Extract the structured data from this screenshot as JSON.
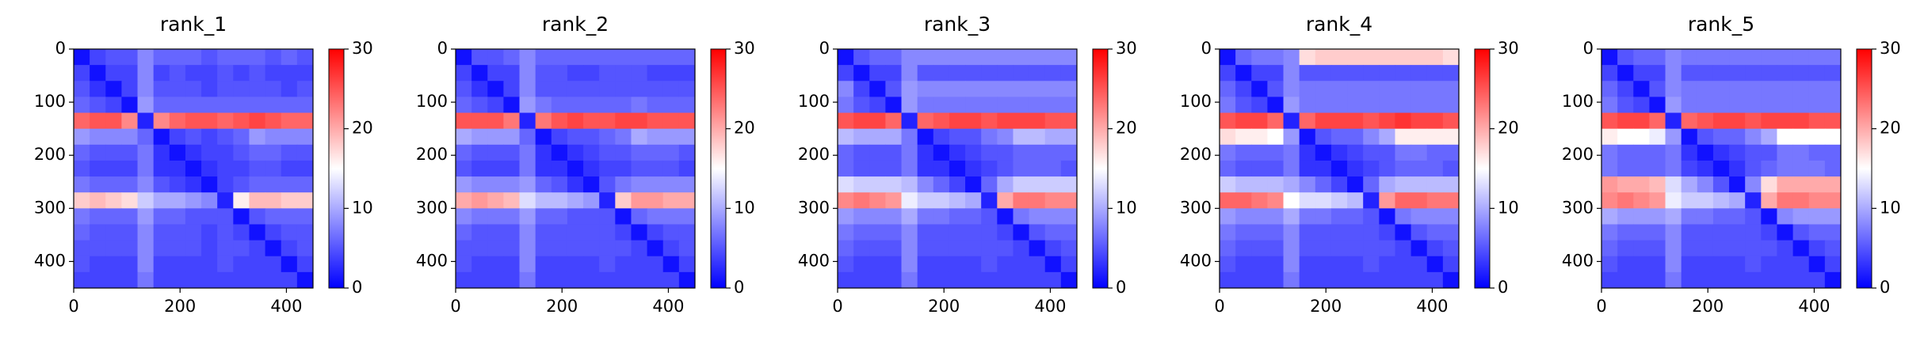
{
  "chart_data": [
    {
      "type": "heatmap",
      "title": "rank_1",
      "cmap": "bwr",
      "clim": [
        0,
        30
      ],
      "cticks": [
        0,
        10,
        20,
        30
      ],
      "xlim": [
        0,
        450
      ],
      "ylim": [
        450,
        0
      ],
      "xticks": [
        0,
        200,
        400
      ],
      "yticks": [
        0,
        100,
        200,
        300,
        400
      ],
      "z": [
        [
          1,
          4,
          5,
          5,
          8,
          6,
          6,
          6,
          5,
          6,
          6,
          6,
          5,
          6,
          5
        ],
        [
          4,
          1,
          4,
          4,
          8,
          4,
          5,
          4,
          4,
          5,
          4,
          5,
          4,
          4,
          4
        ],
        [
          5,
          3,
          1,
          4,
          8,
          5,
          5,
          5,
          4,
          5,
          5,
          5,
          5,
          4,
          5
        ],
        [
          6,
          5,
          4,
          1,
          9,
          6,
          6,
          6,
          6,
          6,
          6,
          6,
          6,
          6,
          6
        ],
        [
          24,
          25,
          25,
          22,
          2,
          22,
          24,
          25,
          25,
          24,
          25,
          26,
          25,
          24,
          24
        ],
        [
          9,
          8,
          8,
          8,
          6,
          1,
          4,
          5,
          4,
          5,
          6,
          9,
          8,
          8,
          8
        ],
        [
          6,
          5,
          5,
          5,
          7,
          3,
          1,
          3,
          4,
          4,
          5,
          6,
          6,
          5,
          5
        ],
        [
          5,
          4,
          4,
          4,
          7,
          3,
          3,
          1,
          3,
          4,
          4,
          5,
          5,
          4,
          4
        ],
        [
          7,
          6,
          6,
          6,
          8,
          5,
          4,
          3,
          1,
          4,
          5,
          6,
          6,
          6,
          6
        ],
        [
          18,
          19,
          18,
          17,
          12,
          10,
          10,
          9,
          8,
          2,
          16,
          19,
          19,
          18,
          18
        ],
        [
          7,
          6,
          6,
          6,
          9,
          6,
          6,
          5,
          5,
          5,
          1,
          5,
          6,
          6,
          6
        ],
        [
          6,
          5,
          5,
          5,
          8,
          5,
          5,
          5,
          4,
          5,
          4,
          1,
          4,
          5,
          5
        ],
        [
          5,
          5,
          5,
          5,
          8,
          5,
          5,
          5,
          4,
          5,
          5,
          4,
          1,
          4,
          5
        ],
        [
          5,
          4,
          4,
          4,
          8,
          4,
          4,
          4,
          4,
          5,
          4,
          4,
          4,
          1,
          4
        ],
        [
          4,
          4,
          4,
          4,
          7,
          4,
          4,
          4,
          4,
          4,
          4,
          4,
          4,
          4,
          1
        ]
      ]
    },
    {
      "type": "heatmap",
      "title": "rank_2",
      "cmap": "bwr",
      "clim": [
        0,
        30
      ],
      "cticks": [
        0,
        10,
        20,
        30
      ],
      "xlim": [
        0,
        450
      ],
      "ylim": [
        450,
        0
      ],
      "xticks": [
        0,
        200,
        400
      ],
      "yticks": [
        0,
        100,
        200,
        300,
        400
      ],
      "z": [
        [
          1,
          5,
          5,
          6,
          8,
          6,
          6,
          6,
          6,
          6,
          6,
          6,
          6,
          6,
          6
        ],
        [
          4,
          1,
          4,
          4,
          8,
          5,
          5,
          4,
          4,
          5,
          5,
          5,
          4,
          4,
          4
        ],
        [
          5,
          3,
          1,
          4,
          8,
          5,
          5,
          5,
          5,
          5,
          5,
          5,
          5,
          5,
          5
        ],
        [
          6,
          5,
          4,
          1,
          9,
          7,
          6,
          6,
          6,
          6,
          6,
          7,
          6,
          6,
          6
        ],
        [
          25,
          25,
          25,
          23,
          2,
          23,
          25,
          26,
          25,
          25,
          26,
          26,
          25,
          25,
          25
        ],
        [
          10,
          9,
          9,
          9,
          6,
          1,
          4,
          5,
          5,
          6,
          7,
          10,
          9,
          9,
          9
        ],
        [
          6,
          5,
          5,
          5,
          7,
          3,
          1,
          3,
          4,
          5,
          5,
          6,
          6,
          6,
          5
        ],
        [
          5,
          4,
          4,
          4,
          7,
          3,
          3,
          1,
          3,
          4,
          4,
          5,
          5,
          5,
          4
        ],
        [
          9,
          8,
          8,
          8,
          9,
          6,
          5,
          3,
          1,
          5,
          7,
          8,
          8,
          8,
          8
        ],
        [
          20,
          21,
          20,
          19,
          13,
          11,
          11,
          10,
          9,
          2,
          18,
          21,
          21,
          20,
          20
        ],
        [
          8,
          7,
          7,
          7,
          9,
          6,
          6,
          5,
          5,
          5,
          1,
          6,
          7,
          7,
          7
        ],
        [
          6,
          5,
          5,
          5,
          8,
          5,
          5,
          5,
          5,
          5,
          4,
          1,
          4,
          5,
          5
        ],
        [
          5,
          5,
          5,
          5,
          8,
          5,
          5,
          5,
          5,
          5,
          5,
          4,
          1,
          4,
          5
        ],
        [
          5,
          4,
          4,
          4,
          8,
          4,
          4,
          4,
          4,
          5,
          4,
          4,
          4,
          1,
          4
        ],
        [
          4,
          4,
          4,
          4,
          7,
          4,
          4,
          4,
          4,
          4,
          4,
          4,
          4,
          4,
          1
        ]
      ]
    },
    {
      "type": "heatmap",
      "title": "rank_3",
      "cmap": "bwr",
      "clim": [
        0,
        30
      ],
      "cticks": [
        0,
        10,
        20,
        30
      ],
      "xlim": [
        0,
        450
      ],
      "ylim": [
        450,
        0
      ],
      "xticks": [
        0,
        200,
        400
      ],
      "yticks": [
        0,
        100,
        200,
        300,
        400
      ],
      "z": [
        [
          1,
          5,
          6,
          6,
          8,
          8,
          8,
          8,
          8,
          8,
          8,
          8,
          8,
          8,
          8
        ],
        [
          4,
          1,
          4,
          4,
          8,
          5,
          5,
          5,
          5,
          5,
          5,
          5,
          5,
          5,
          5
        ],
        [
          8,
          4,
          1,
          5,
          9,
          8,
          8,
          8,
          8,
          8,
          8,
          8,
          8,
          8,
          8
        ],
        [
          7,
          5,
          4,
          1,
          9,
          7,
          7,
          7,
          7,
          7,
          7,
          7,
          7,
          7,
          7
        ],
        [
          25,
          26,
          26,
          24,
          2,
          24,
          25,
          26,
          26,
          25,
          26,
          26,
          26,
          25,
          25
        ],
        [
          11,
          10,
          10,
          10,
          7,
          1,
          4,
          5,
          5,
          7,
          8,
          11,
          11,
          10,
          10
        ],
        [
          6,
          5,
          5,
          5,
          7,
          3,
          1,
          3,
          4,
          5,
          5,
          6,
          6,
          6,
          6
        ],
        [
          6,
          5,
          5,
          5,
          7,
          3,
          3,
          1,
          3,
          4,
          5,
          6,
          6,
          6,
          5
        ],
        [
          13,
          12,
          12,
          12,
          11,
          8,
          6,
          4,
          1,
          6,
          10,
          12,
          12,
          12,
          12
        ],
        [
          22,
          23,
          22,
          21,
          14,
          12,
          12,
          11,
          10,
          2,
          20,
          23,
          23,
          22,
          22
        ],
        [
          9,
          8,
          8,
          8,
          10,
          7,
          7,
          6,
          6,
          5,
          1,
          7,
          8,
          8,
          8
        ],
        [
          7,
          6,
          6,
          6,
          8,
          5,
          5,
          5,
          5,
          5,
          4,
          1,
          5,
          6,
          6
        ],
        [
          6,
          5,
          5,
          5,
          8,
          5,
          5,
          5,
          5,
          5,
          5,
          4,
          1,
          4,
          5
        ],
        [
          5,
          4,
          4,
          4,
          8,
          4,
          4,
          4,
          4,
          5,
          4,
          4,
          4,
          1,
          4
        ],
        [
          4,
          4,
          4,
          4,
          7,
          4,
          4,
          4,
          4,
          4,
          4,
          4,
          4,
          4,
          1
        ]
      ]
    },
    {
      "type": "heatmap",
      "title": "rank_4",
      "cmap": "bwr",
      "clim": [
        0,
        30
      ],
      "cticks": [
        0,
        10,
        20,
        30
      ],
      "xlim": [
        0,
        450
      ],
      "ylim": [
        450,
        0
      ],
      "xticks": [
        0,
        200,
        400
      ],
      "yticks": [
        0,
        100,
        200,
        300,
        400
      ],
      "z": [
        [
          1,
          6,
          7,
          7,
          8,
          17,
          18,
          18,
          18,
          18,
          18,
          18,
          18,
          18,
          17
        ],
        [
          4,
          1,
          4,
          4,
          8,
          5,
          5,
          5,
          5,
          5,
          5,
          5,
          5,
          5,
          5
        ],
        [
          6,
          4,
          1,
          5,
          8,
          7,
          7,
          7,
          7,
          7,
          7,
          7,
          7,
          7,
          7
        ],
        [
          7,
          5,
          4,
          1,
          9,
          7,
          7,
          7,
          7,
          7,
          7,
          7,
          7,
          7,
          7
        ],
        [
          25,
          26,
          26,
          24,
          2,
          24,
          26,
          26,
          26,
          25,
          26,
          27,
          26,
          26,
          25
        ],
        [
          17,
          16,
          16,
          15,
          9,
          1,
          5,
          6,
          6,
          8,
          10,
          16,
          16,
          16,
          16
        ],
        [
          7,
          6,
          6,
          6,
          7,
          3,
          1,
          3,
          4,
          5,
          5,
          7,
          7,
          6,
          6
        ],
        [
          6,
          5,
          5,
          5,
          7,
          3,
          3,
          1,
          3,
          4,
          5,
          6,
          6,
          6,
          5
        ],
        [
          12,
          11,
          11,
          11,
          10,
          8,
          6,
          4,
          1,
          6,
          10,
          11,
          11,
          11,
          11
        ],
        [
          24,
          24,
          23,
          22,
          15,
          13,
          13,
          12,
          11,
          2,
          21,
          24,
          24,
          23,
          23
        ],
        [
          9,
          8,
          8,
          8,
          10,
          7,
          7,
          6,
          6,
          5,
          1,
          7,
          8,
          8,
          8
        ],
        [
          7,
          6,
          6,
          6,
          8,
          5,
          5,
          5,
          5,
          5,
          4,
          1,
          5,
          6,
          6
        ],
        [
          6,
          5,
          5,
          5,
          8,
          5,
          5,
          5,
          5,
          5,
          5,
          4,
          1,
          4,
          5
        ],
        [
          5,
          4,
          4,
          4,
          8,
          4,
          4,
          4,
          4,
          5,
          4,
          4,
          4,
          1,
          4
        ],
        [
          4,
          4,
          4,
          4,
          7,
          4,
          4,
          4,
          4,
          4,
          4,
          4,
          4,
          4,
          1
        ]
      ]
    },
    {
      "type": "heatmap",
      "title": "rank_5",
      "cmap": "bwr",
      "clim": [
        0,
        30
      ],
      "cticks": [
        0,
        10,
        20,
        30
      ],
      "xlim": [
        0,
        450
      ],
      "ylim": [
        450,
        0
      ],
      "xticks": [
        0,
        200,
        400
      ],
      "yticks": [
        0,
        100,
        200,
        300,
        400
      ],
      "z": [
        [
          1,
          5,
          6,
          6,
          8,
          7,
          7,
          7,
          7,
          7,
          7,
          7,
          7,
          7,
          7
        ],
        [
          4,
          1,
          4,
          4,
          8,
          5,
          5,
          5,
          5,
          5,
          5,
          5,
          5,
          5,
          5
        ],
        [
          6,
          4,
          1,
          5,
          8,
          7,
          7,
          7,
          7,
          7,
          7,
          7,
          7,
          7,
          7
        ],
        [
          7,
          5,
          4,
          1,
          9,
          7,
          7,
          7,
          7,
          7,
          7,
          7,
          7,
          7,
          7
        ],
        [
          25,
          26,
          26,
          24,
          2,
          24,
          25,
          26,
          26,
          25,
          26,
          26,
          26,
          25,
          25
        ],
        [
          16,
          15,
          15,
          14,
          9,
          1,
          5,
          6,
          6,
          8,
          10,
          15,
          15,
          15,
          15
        ],
        [
          7,
          6,
          6,
          6,
          7,
          3,
          1,
          3,
          4,
          5,
          5,
          7,
          7,
          6,
          6
        ],
        [
          7,
          6,
          6,
          6,
          7,
          4,
          3,
          1,
          3,
          5,
          6,
          7,
          7,
          7,
          6
        ],
        [
          21,
          20,
          20,
          19,
          13,
          10,
          8,
          5,
          1,
          8,
          17,
          20,
          20,
          20,
          20
        ],
        [
          22,
          23,
          22,
          21,
          14,
          12,
          12,
          11,
          10,
          2,
          20,
          23,
          23,
          22,
          22
        ],
        [
          10,
          9,
          9,
          9,
          10,
          7,
          7,
          6,
          6,
          5,
          1,
          8,
          9,
          9,
          9
        ],
        [
          7,
          6,
          6,
          6,
          8,
          5,
          5,
          5,
          5,
          5,
          4,
          1,
          5,
          6,
          6
        ],
        [
          6,
          5,
          5,
          5,
          8,
          5,
          5,
          5,
          5,
          5,
          5,
          4,
          1,
          4,
          5
        ],
        [
          5,
          4,
          4,
          4,
          8,
          4,
          4,
          4,
          4,
          5,
          4,
          4,
          4,
          1,
          4
        ],
        [
          4,
          4,
          4,
          4,
          7,
          4,
          4,
          4,
          4,
          4,
          4,
          4,
          4,
          4,
          1
        ]
      ]
    }
  ]
}
